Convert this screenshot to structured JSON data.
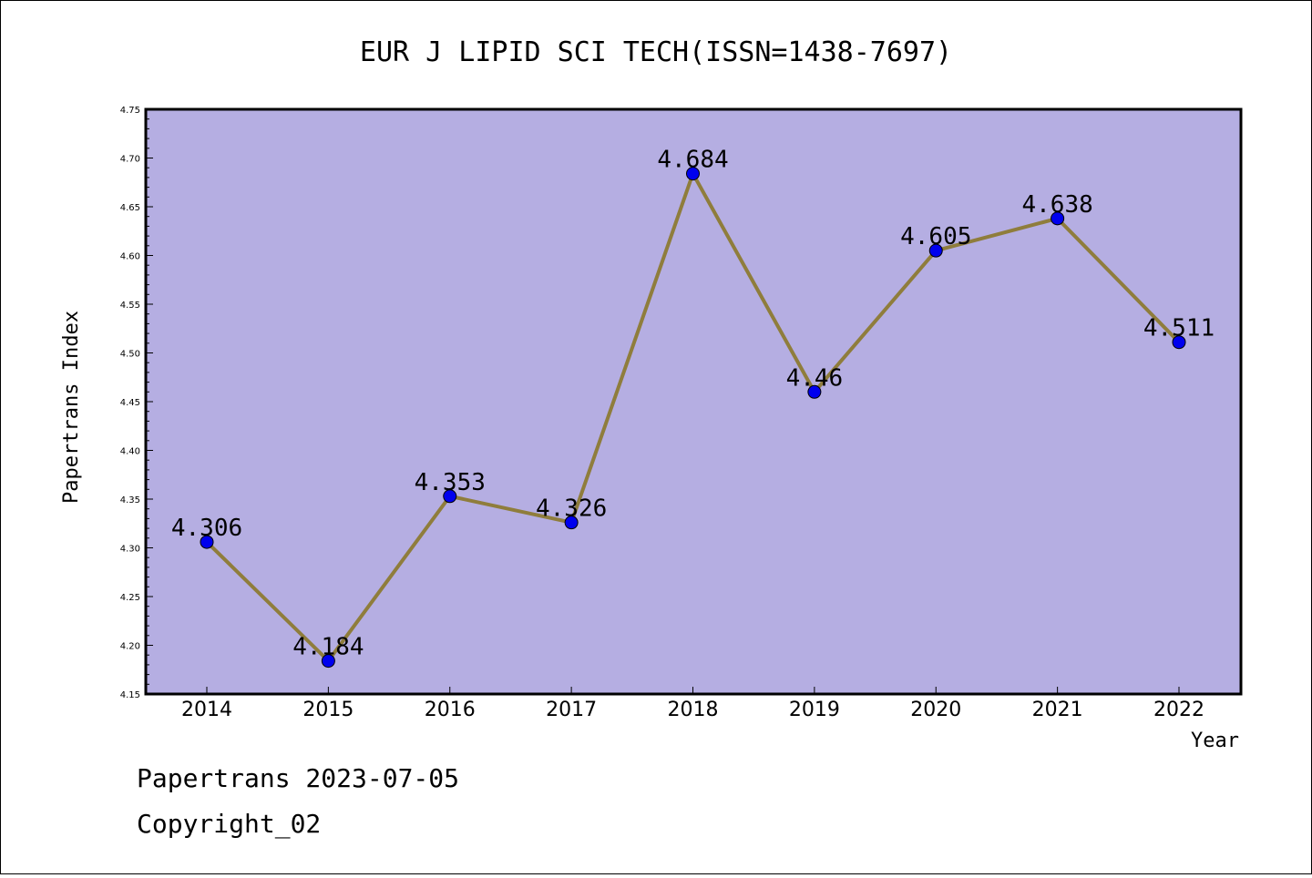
{
  "chart_data": {
    "type": "line",
    "title": "EUR J LIPID SCI TECH(ISSN=1438-7697)",
    "xlabel": "Year",
    "ylabel": "Papertrans Index",
    "categories": [
      "2014",
      "2015",
      "2016",
      "2017",
      "2018",
      "2019",
      "2020",
      "2021",
      "2022"
    ],
    "values": [
      4.306,
      4.184,
      4.353,
      4.326,
      4.684,
      4.46,
      4.605,
      4.638,
      4.511
    ],
    "data_labels": [
      "4.306",
      "4.184",
      "4.353",
      "4.326",
      "4.684",
      "4.46",
      "4.605",
      "4.638",
      "4.511"
    ],
    "ylim": [
      4.15,
      4.75
    ],
    "yticks": [
      "4.15",
      "4.20",
      "4.25",
      "4.30",
      "4.35",
      "4.40",
      "4.45",
      "4.50",
      "4.55",
      "4.60",
      "4.65",
      "4.70",
      "4.75"
    ],
    "grid": false,
    "colors": {
      "plot_bg": "#b5aee2",
      "line": "#8f7d3c",
      "marker": "#0000ee"
    }
  },
  "footer": {
    "line1": "Papertrans 2023-07-05",
    "line2": "Copyright_02"
  }
}
